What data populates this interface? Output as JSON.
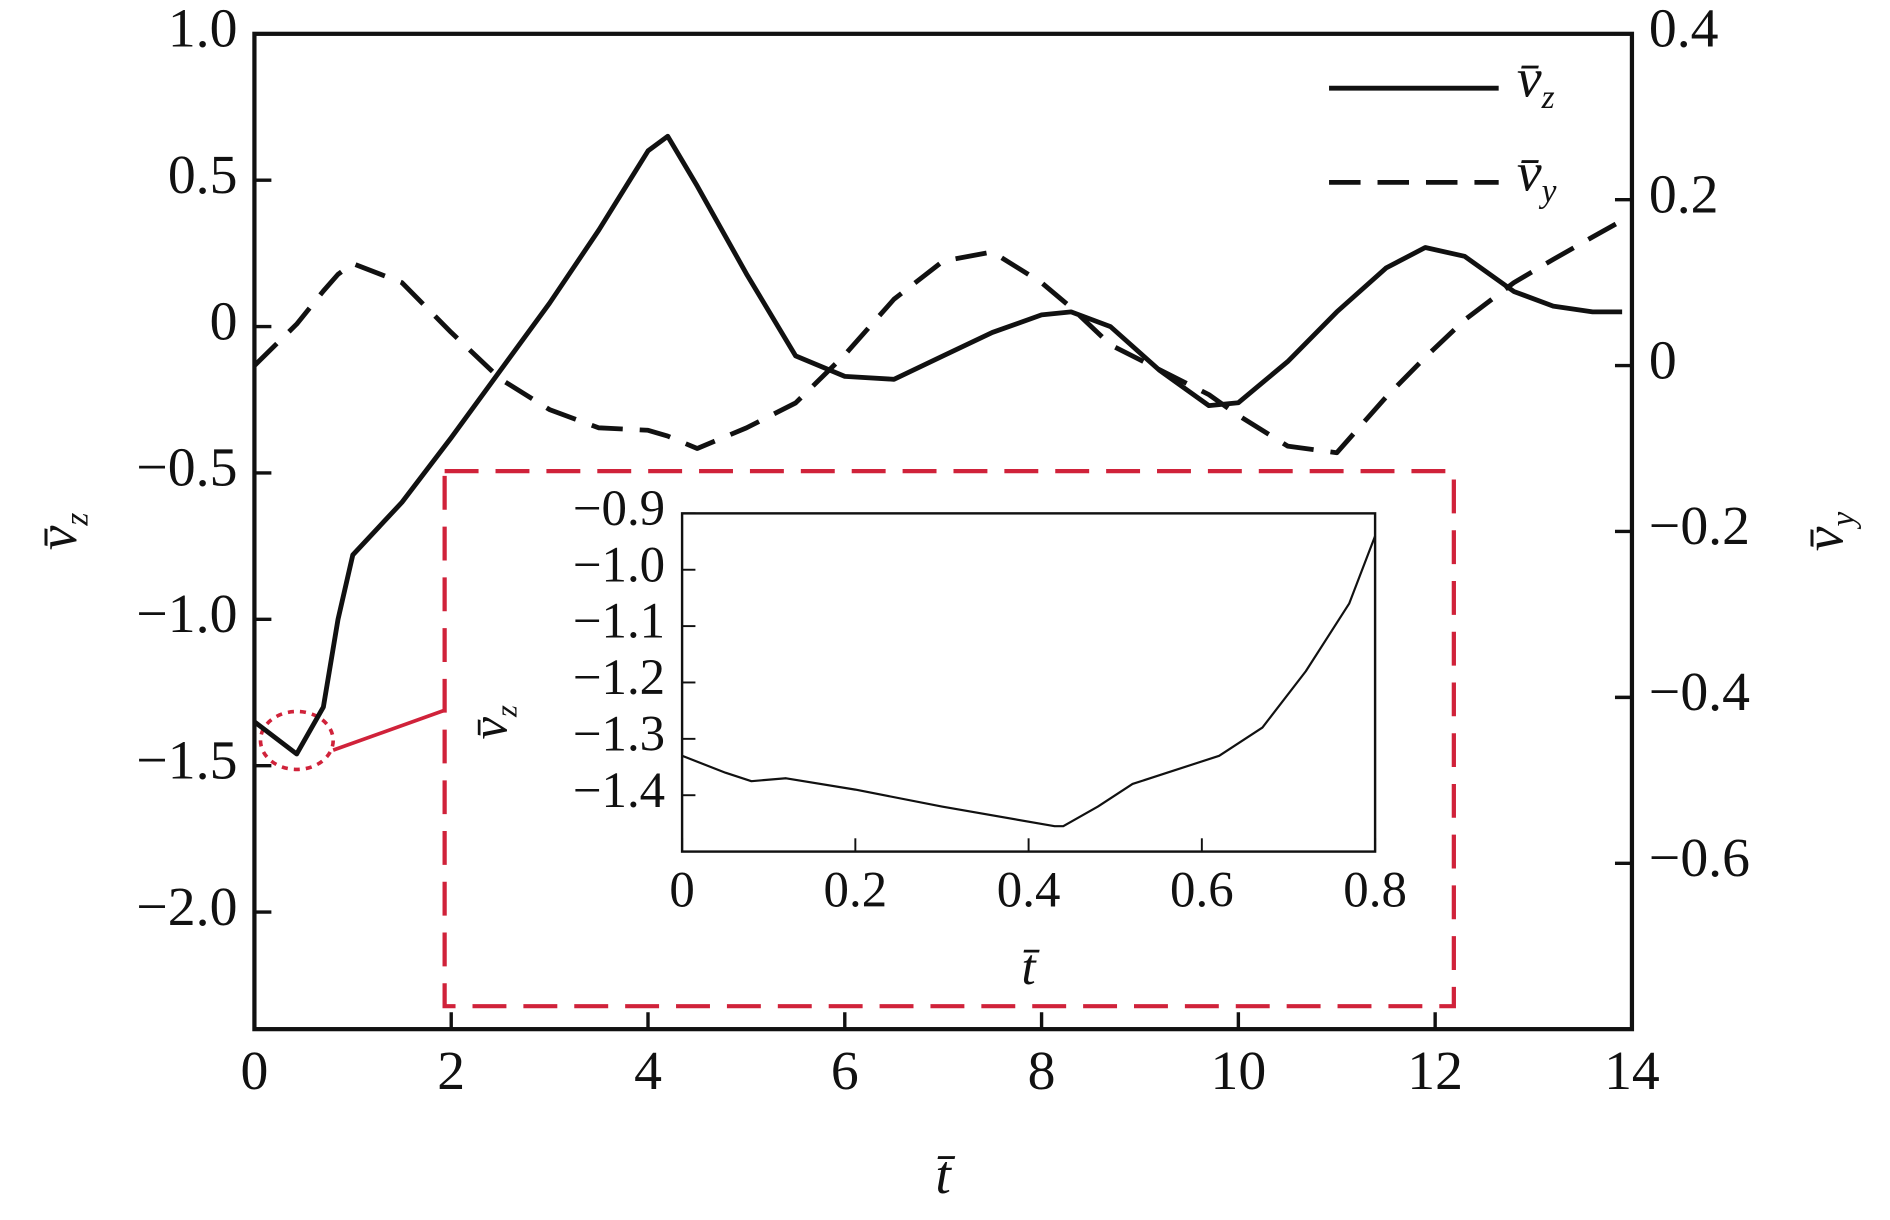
{
  "chart_data": [
    {
      "type": "line",
      "xlabel": "t̄",
      "ylabel": "v̄z",
      "y2label": "v̄y",
      "x": [
        0,
        0.43,
        0.7,
        0.85,
        1,
        1.5,
        2,
        2.5,
        3,
        3.5,
        4,
        4.2,
        4.5,
        5,
        5.5,
        6,
        6.5,
        7,
        7.5,
        8,
        8.3,
        8.7,
        9.2,
        9.7,
        10,
        10.5,
        11,
        11.5,
        11.9,
        12.3,
        12.8,
        13.2,
        13.6,
        13.9
      ],
      "series": [
        {
          "name": "v̄z",
          "color": "#111111",
          "dash": false,
          "values": [
            -1.35,
            -1.46,
            -1.3,
            -1.0,
            -0.78,
            -0.6,
            -0.38,
            -0.15,
            0.08,
            0.33,
            0.6,
            0.65,
            0.48,
            0.18,
            -0.1,
            -0.17,
            -0.18,
            -0.1,
            -0.02,
            0.04,
            0.05,
            0.0,
            -0.15,
            -0.27,
            -0.26,
            -0.12,
            0.05,
            0.2,
            0.27,
            0.24,
            0.12,
            0.07,
            0.05,
            0.05
          ]
        },
        {
          "name": "v̄y",
          "color": "#111111",
          "dash": true,
          "axis": "y2",
          "values": [
            0,
            0.05,
            0.09,
            0.11,
            0.123,
            0.1,
            0.04,
            -0.016,
            -0.053,
            -0.075,
            -0.078,
            -0.085,
            -0.1,
            -0.075,
            -0.045,
            0.013,
            0.08,
            0.126,
            0.137,
            0.1,
            0.07,
            0.025,
            -0.005,
            -0.035,
            -0.06,
            -0.097,
            -0.105,
            -0.038,
            0.01,
            0.055,
            0.1,
            0.128,
            0.155,
            0.175
          ]
        }
      ],
      "xlim": [
        0,
        14
      ],
      "xticks": [
        0,
        2,
        4,
        6,
        8,
        10,
        12,
        14
      ],
      "ylim": [
        -2.4,
        1.0
      ],
      "yticks": [
        {
          "value": 1.0,
          "label": "1.0"
        },
        0.5,
        0,
        {
          "value": -0.5,
          "label": "−0.5"
        },
        {
          "value": -1.0,
          "label": "−1.0"
        },
        {
          "value": -1.5,
          "label": "−1.5"
        },
        {
          "value": -2.0,
          "label": "−2.0"
        }
      ],
      "y2lim": [
        -0.8,
        0.4
      ],
      "y2ticks": [
        0.4,
        0.2,
        0,
        {
          "value": -0.2,
          "label": "−0.2"
        },
        {
          "value": -0.4,
          "label": "−0.4"
        },
        {
          "value": -0.6,
          "label": "−0.6"
        }
      ],
      "legend": "upper right"
    },
    {
      "type": "line",
      "xlabel": "t̄",
      "ylabel": "v̄z",
      "x": [
        0,
        0.05,
        0.08,
        0.12,
        0.2,
        0.3,
        0.43,
        0.44,
        0.48,
        0.52,
        0.56,
        0.62,
        0.67,
        0.72,
        0.77,
        0.8
      ],
      "series": [
        {
          "color": "#111111",
          "dash": false,
          "values": [
            -1.33,
            -1.36,
            -1.375,
            -1.37,
            -1.39,
            -1.42,
            -1.455,
            -1.455,
            -1.42,
            -1.38,
            -1.36,
            -1.33,
            -1.28,
            -1.18,
            -1.06,
            -0.94
          ]
        }
      ],
      "xlim": [
        0,
        0.8
      ],
      "xticks": [
        0,
        0.2,
        0.4,
        0.6,
        0.8
      ],
      "ylim": [
        -1.5,
        -0.9
      ],
      "yticks": [
        {
          "value": -0.9,
          "label": "−0.9"
        },
        {
          "value": -1.0,
          "label": "−1.0"
        },
        {
          "value": -1.1,
          "label": "−1.1"
        },
        {
          "value": -1.2,
          "label": "−1.2"
        },
        {
          "value": -1.3,
          "label": "−1.3"
        },
        {
          "value": -1.4,
          "label": "−1.4"
        }
      ]
    }
  ]
}
